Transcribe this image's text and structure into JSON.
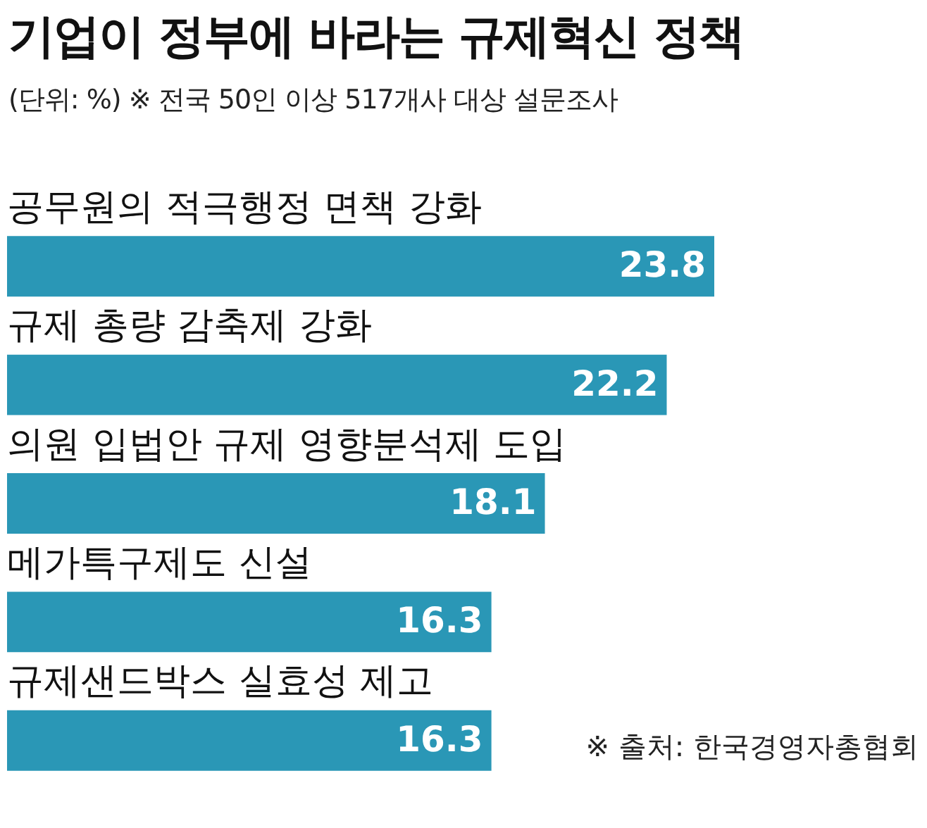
{
  "chart_data": {
    "type": "bar",
    "orientation": "horizontal",
    "title": "기업이 정부에 바라는 규제혁신 정책",
    "subtitle": "(단위: %) ※ 전국 50인 이상 517개사 대상 설문조사",
    "categories": [
      "공무원의 적극행정 면책 강화",
      "규제 총량 감축제 강화",
      "의원 입법안 규제 영향분석제 도입",
      "메가특구제도 신설",
      "규제샌드박스 실효성 제고"
    ],
    "values": [
      23.8,
      22.2,
      18.1,
      16.3,
      16.3
    ],
    "color": "#2a97b6",
    "legend": false,
    "data_labels": true,
    "annotations": [
      "※ 출처: 한국경영자총협회"
    ]
  }
}
